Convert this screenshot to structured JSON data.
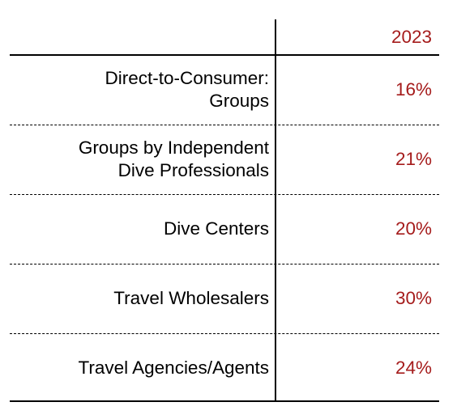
{
  "chart_data": {
    "type": "table",
    "columns": [
      "",
      "2023"
    ],
    "rows": [
      {
        "label": "Direct-to-Consumer: Groups",
        "label_lines": [
          "Direct-to-Consumer:",
          "Groups"
        ],
        "value": 16,
        "display": "16%"
      },
      {
        "label": "Groups by Independent Dive Professionals",
        "label_lines": [
          "Groups by Independent",
          "Dive Professionals"
        ],
        "value": 21,
        "display": "21%"
      },
      {
        "label": "Dive Centers",
        "label_lines": [
          "Dive Centers"
        ],
        "value": 20,
        "display": "20%"
      },
      {
        "label": "Travel Wholesalers",
        "label_lines": [
          "Travel Wholesalers"
        ],
        "value": 30,
        "display": "30%"
      },
      {
        "label": "Travel Agencies/Agents",
        "label_lines": [
          "Travel Agencies/Agents"
        ],
        "value": 24,
        "display": "24%"
      }
    ],
    "value_color": "#a51c1c"
  }
}
